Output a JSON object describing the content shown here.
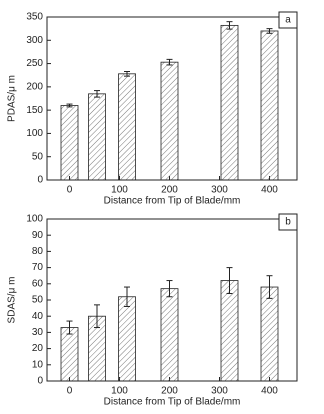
{
  "chart_data": [
    {
      "type": "bar",
      "annotation": "a",
      "xlabel": "Distance from Tip of Blade/mm",
      "ylabel": "PDAS/μ m",
      "x": [
        0,
        55,
        115,
        200,
        320,
        400
      ],
      "values": [
        160,
        185,
        228,
        253,
        332,
        320
      ],
      "errors": [
        3,
        7,
        5,
        6,
        8,
        5
      ],
      "color": "#555555",
      "xlim": [
        -45,
        455
      ],
      "ylim": [
        0,
        350
      ],
      "xticks": [
        0,
        100,
        200,
        300,
        400
      ],
      "yticks": [
        0,
        50,
        100,
        150,
        200,
        250,
        300,
        350
      ]
    },
    {
      "type": "bar",
      "annotation": "b",
      "xlabel": "Distance from Tip of Blade/mm",
      "ylabel": "SDAS/μ m",
      "x": [
        0,
        55,
        115,
        200,
        320,
        400
      ],
      "values": [
        33,
        40,
        52,
        57,
        62,
        58
      ],
      "errors": [
        4,
        7,
        6,
        5,
        8,
        7
      ],
      "color": "#555555",
      "xlim": [
        -45,
        455
      ],
      "ylim": [
        0,
        100
      ],
      "xticks": [
        0,
        100,
        200,
        300,
        400
      ],
      "yticks": [
        0,
        10,
        20,
        30,
        40,
        50,
        60,
        70,
        80,
        90,
        100
      ]
    }
  ]
}
